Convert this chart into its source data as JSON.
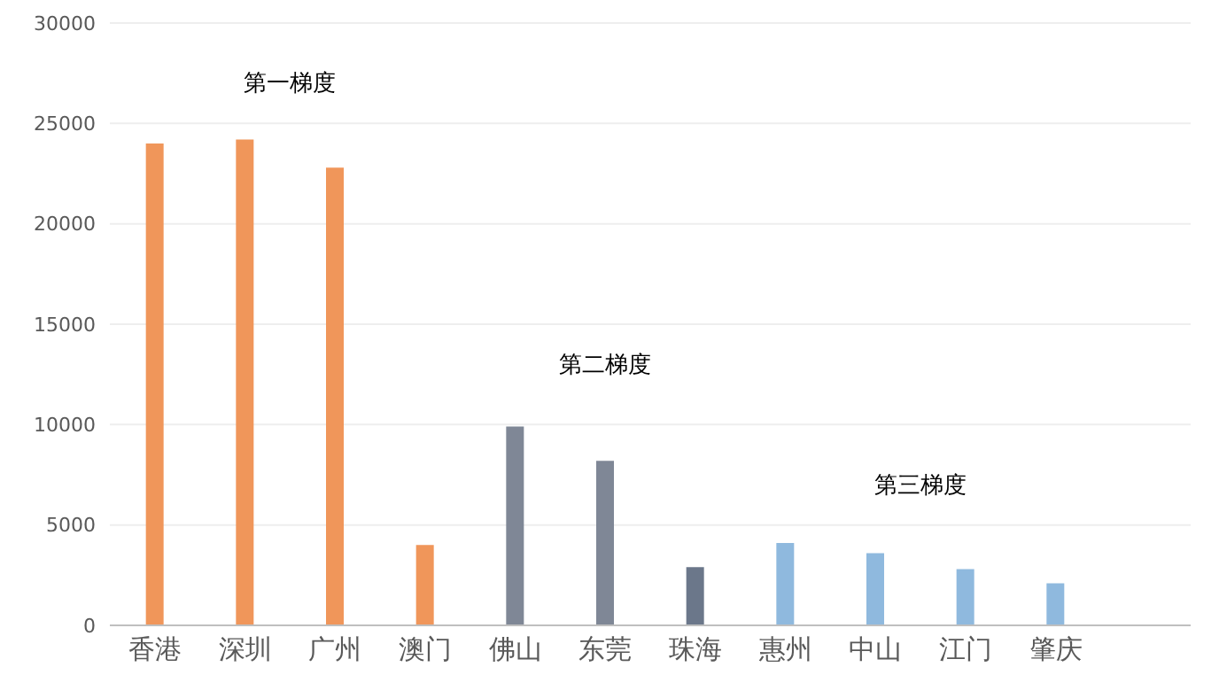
{
  "chart_data": {
    "type": "bar",
    "categories": [
      "香港",
      "深圳",
      "广州",
      "澳门",
      "佛山",
      "东莞",
      "珠海",
      "惠州",
      "中山",
      "江门",
      "肇庆",
      null
    ],
    "values": [
      24000,
      24200,
      22800,
      4000,
      9900,
      8200,
      2900,
      4100,
      3600,
      2800,
      2100,
      null
    ],
    "colors": [
      "#f0965a",
      "#f0965a",
      "#f0965a",
      "#f0965a",
      "#7f8796",
      "#7f8796",
      "#6b778a",
      "#8fb9de",
      "#8fb9de",
      "#8fb9de",
      "#8fb9de",
      "#8fb9de"
    ],
    "ylim": [
      0,
      30000
    ],
    "yticks": [
      0,
      5000,
      10000,
      15000,
      20000,
      25000,
      30000
    ],
    "grid": "y",
    "annotations": [
      "第一梯度",
      "第二梯度",
      "第三梯度"
    ]
  }
}
